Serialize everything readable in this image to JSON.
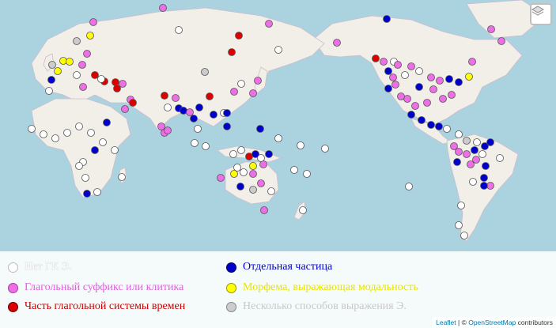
{
  "map": {
    "layers_control_icon": "layers-icon",
    "colors": {
      "ocean": "#aad3df",
      "land": "#f2efe9",
      "border": "#c9b9c9"
    }
  },
  "legend": {
    "items": [
      {
        "label": "Нет ГК Э.",
        "color": "#ffffff",
        "text_color": "#ffffff"
      },
      {
        "label": "Отдельная частица",
        "color": "#0000cc",
        "text_color": "#0000cc"
      },
      {
        "label": "Глагольный суффикс или клитика",
        "color": "#ee6ee6",
        "text_color": "#e060dd"
      },
      {
        "label": "Морфема, выражающая модальность",
        "color": "#ffff00",
        "text_color": "#e6e600"
      },
      {
        "label": "Часть глагольной системы времен",
        "color": "#dd0000",
        "text_color": "#cc0000"
      },
      {
        "label": "Несколько способов выражения Э.",
        "color": "#cccccc",
        "text_color": "#c8c8c8"
      }
    ]
  },
  "attribution": {
    "leaflet": "Leaflet",
    "separator": " | © ",
    "osm": "OpenStreetMap",
    "suffix": " contributors"
  }
}
